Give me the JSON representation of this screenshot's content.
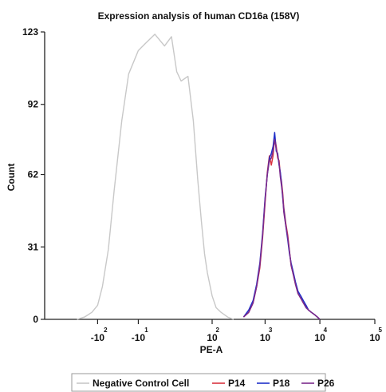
{
  "chart_data": {
    "type": "line",
    "title": "Expression analysis of human CD16a (158V)",
    "xlabel": "PE-A",
    "ylabel": "Count",
    "x_scale": "biexponential (log-like)",
    "xlim": [
      -1000,
      100000
    ],
    "ylim": [
      0,
      123
    ],
    "y_ticks": [
      0,
      31,
      62,
      92,
      123
    ],
    "x_ticks": [
      {
        "base": "-10",
        "exp": "2",
        "value": -100
      },
      {
        "base": "-10",
        "exp": "1",
        "value": -10
      },
      {
        "base": "10",
        "exp": "2",
        "value": 100
      },
      {
        "base": "10",
        "exp": "3",
        "value": 1000
      },
      {
        "base": "10",
        "exp": "4",
        "value": 10000
      },
      {
        "base": "10",
        "exp": "5",
        "value": 100000
      }
    ],
    "grid": false,
    "legend_position": "bottom",
    "series": [
      {
        "name": "Negative Control Cell",
        "color": "#c8c8c8",
        "x": [
          -250,
          -180,
          -130,
          -100,
          -80,
          -60,
          -45,
          -30,
          -20,
          -10,
          -5,
          0,
          5,
          10,
          15,
          20,
          30,
          40,
          50,
          60,
          70,
          80,
          100,
          120,
          150,
          200,
          260
        ],
        "y": [
          0,
          1,
          3,
          6,
          14,
          30,
          55,
          85,
          105,
          115,
          118,
          122,
          117,
          121,
          106,
          102,
          104,
          85,
          60,
          42,
          28,
          20,
          10,
          5,
          3,
          1,
          0
        ]
      },
      {
        "name": "P14",
        "color": "#d9333f",
        "x": [
          400,
          500,
          600,
          700,
          800,
          900,
          1000,
          1100,
          1200,
          1300,
          1400,
          1500,
          1600,
          1700,
          1800,
          1900,
          2000,
          2100,
          2200,
          2400,
          2600,
          2800,
          3000,
          3300,
          3600,
          4000,
          4500,
          5000,
          5600,
          6200,
          7000,
          8000,
          9000,
          10000
        ],
        "y": [
          1,
          3,
          7,
          14,
          22,
          35,
          50,
          63,
          70,
          66,
          70,
          78,
          74,
          69,
          68,
          62,
          59,
          54,
          48,
          41,
          36,
          29,
          23,
          19,
          15,
          11,
          9,
          7,
          6,
          4,
          3,
          2,
          1,
          0
        ]
      },
      {
        "name": "P18",
        "color": "#1f2fc9",
        "x": [
          400,
          500,
          600,
          700,
          800,
          900,
          1000,
          1100,
          1200,
          1300,
          1400,
          1500,
          1600,
          1700,
          1800,
          1900,
          2000,
          2100,
          2200,
          2400,
          2600,
          2800,
          3000,
          3300,
          3600,
          4000,
          4500,
          5000,
          5600,
          6200,
          7000,
          8000,
          9000,
          10000
        ],
        "y": [
          1,
          4,
          8,
          15,
          24,
          37,
          52,
          62,
          69,
          71,
          74,
          80,
          72,
          71,
          66,
          63,
          58,
          52,
          47,
          40,
          34,
          28,
          24,
          20,
          16,
          12,
          10,
          8,
          6,
          4,
          3,
          2,
          1,
          0
        ]
      },
      {
        "name": "P26",
        "color": "#7b2a8c",
        "x": [
          400,
          500,
          600,
          700,
          800,
          900,
          1000,
          1100,
          1200,
          1300,
          1400,
          1500,
          1600,
          1700,
          1800,
          1900,
          2000,
          2100,
          2200,
          2400,
          2600,
          2800,
          3000,
          3300,
          3600,
          4000,
          4500,
          5000,
          5600,
          6200,
          7000,
          8000,
          9000,
          10000
        ],
        "y": [
          1,
          3,
          7,
          14,
          23,
          36,
          51,
          62,
          68,
          69,
          72,
          77,
          73,
          70,
          67,
          61,
          57,
          53,
          46,
          40,
          35,
          29,
          23,
          19,
          15,
          11,
          9,
          7,
          5,
          4,
          3,
          2,
          1,
          0
        ]
      }
    ]
  }
}
